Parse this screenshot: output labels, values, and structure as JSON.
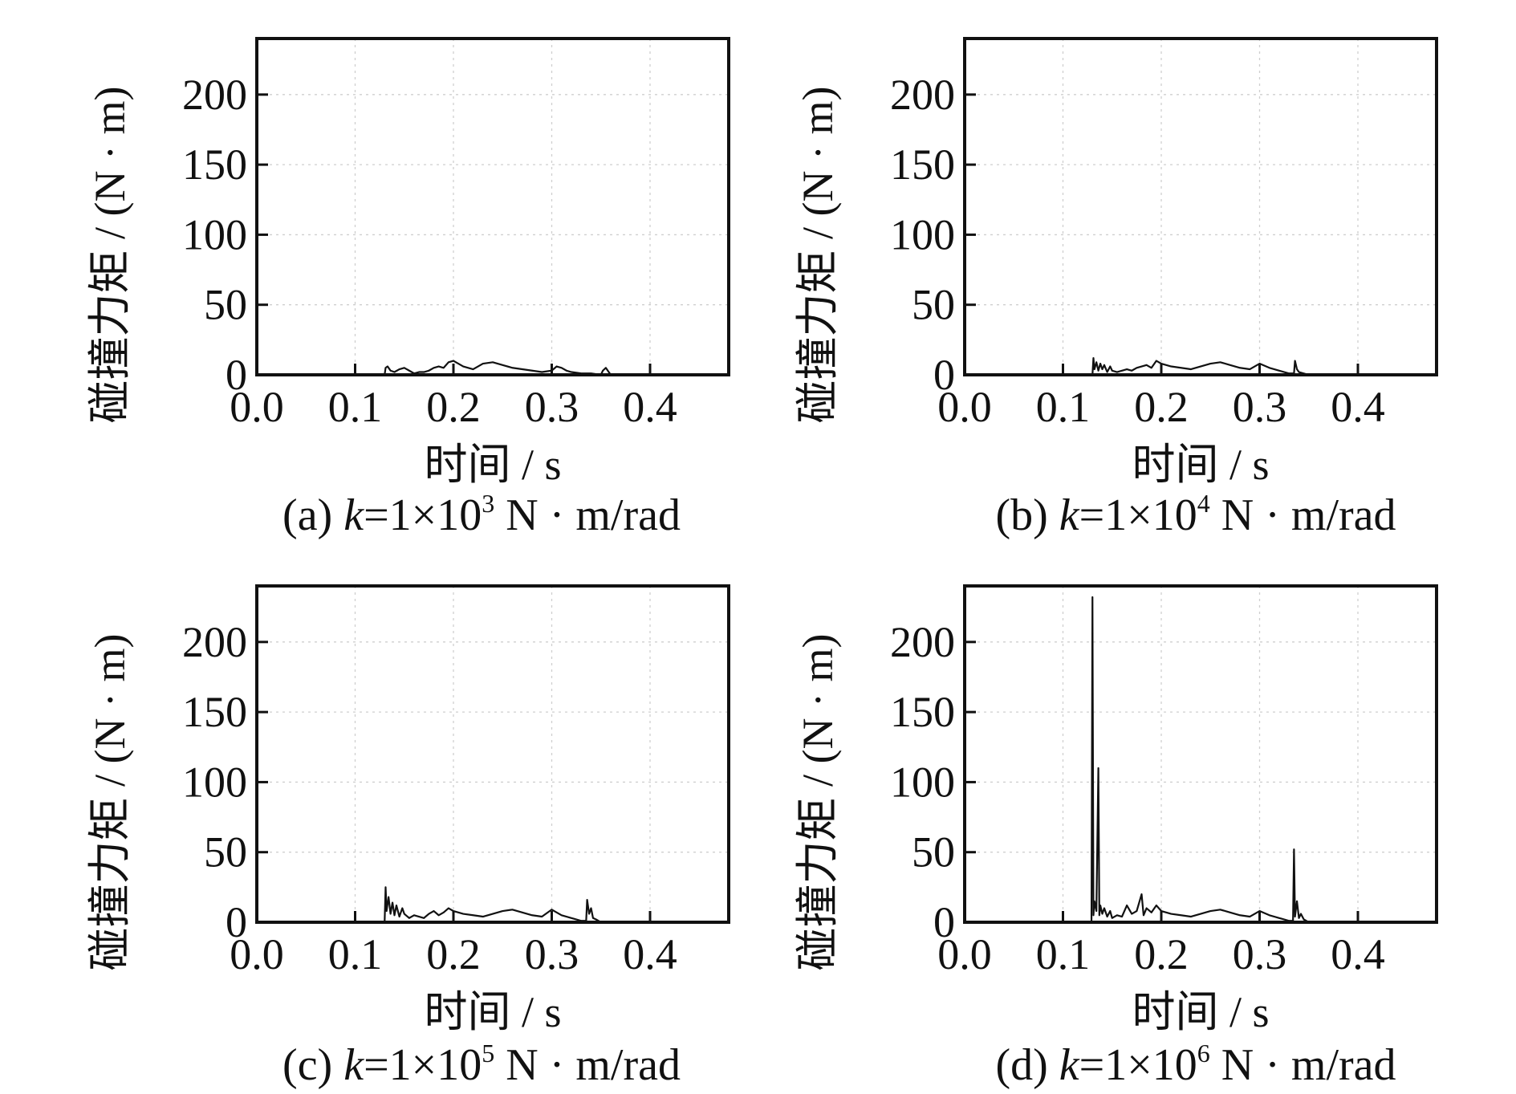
{
  "chart_data": [
    {
      "type": "line",
      "xlabel": "时间 / s",
      "ylabel": "碰撞力矩 / (N · m)",
      "xlim": [
        0,
        0.48
      ],
      "ylim": [
        0,
        240
      ],
      "xticks": [
        "0.0",
        "0.1",
        "0.2",
        "0.3",
        "0.4"
      ],
      "yticks": [
        "0",
        "50",
        "100",
        "150",
        "200"
      ],
      "grid": true,
      "caption": {
        "label": "(a)",
        "k": "k",
        "eq": "=1×10",
        "exp": "3",
        "unit": " N · m/rad"
      },
      "series": [
        {
          "x": [
            0,
            0.13,
            0.131,
            0.133,
            0.136,
            0.14,
            0.145,
            0.15,
            0.155,
            0.16,
            0.165,
            0.17,
            0.175,
            0.18,
            0.185,
            0.19,
            0.195,
            0.2,
            0.205,
            0.21,
            0.215,
            0.22,
            0.225,
            0.23,
            0.24,
            0.25,
            0.26,
            0.27,
            0.28,
            0.29,
            0.3,
            0.305,
            0.31,
            0.315,
            0.32,
            0.33,
            0.34,
            0.35,
            0.352,
            0.355,
            0.358,
            0.36,
            0.48
          ],
          "y": [
            0,
            0,
            5,
            6,
            3,
            2,
            4,
            5,
            3,
            1,
            2,
            2,
            3,
            5,
            6,
            5,
            9,
            10,
            8,
            6,
            5,
            4,
            6,
            8,
            9,
            7,
            5,
            4,
            3,
            2,
            3,
            6,
            5,
            3,
            2,
            1,
            1,
            0,
            3,
            5,
            2,
            0,
            0
          ]
        }
      ]
    },
    {
      "type": "line",
      "xlabel": "时间 / s",
      "ylabel": "碰撞力矩 / (N · m)",
      "xlim": [
        0,
        0.48
      ],
      "ylim": [
        0,
        240
      ],
      "xticks": [
        "0.0",
        "0.1",
        "0.2",
        "0.3",
        "0.4"
      ],
      "yticks": [
        "0",
        "50",
        "100",
        "150",
        "200"
      ],
      "grid": true,
      "caption": {
        "label": "(b)",
        "k": "k",
        "eq": "=1×10",
        "exp": "4",
        "unit": " N · m/rad"
      },
      "series": [
        {
          "x": [
            0,
            0.13,
            0.131,
            0.132,
            0.134,
            0.136,
            0.138,
            0.14,
            0.142,
            0.145,
            0.148,
            0.15,
            0.155,
            0.16,
            0.165,
            0.17,
            0.175,
            0.18,
            0.185,
            0.19,
            0.195,
            0.2,
            0.205,
            0.21,
            0.22,
            0.23,
            0.24,
            0.25,
            0.26,
            0.27,
            0.28,
            0.29,
            0.3,
            0.31,
            0.32,
            0.33,
            0.335,
            0.336,
            0.338,
            0.34,
            0.345,
            0.35,
            0.48
          ],
          "y": [
            0,
            0,
            12,
            4,
            9,
            3,
            8,
            4,
            7,
            2,
            6,
            3,
            2,
            3,
            4,
            3,
            5,
            6,
            7,
            5,
            10,
            8,
            7,
            6,
            5,
            4,
            6,
            8,
            9,
            7,
            5,
            4,
            8,
            5,
            3,
            1,
            1,
            10,
            4,
            2,
            1,
            0,
            0
          ]
        }
      ]
    },
    {
      "type": "line",
      "xlabel": "时间 / s",
      "ylabel": "碰撞力矩 / (N · m)",
      "xlim": [
        0,
        0.48
      ],
      "ylim": [
        0,
        240
      ],
      "xticks": [
        "0.0",
        "0.1",
        "0.2",
        "0.3",
        "0.4"
      ],
      "yticks": [
        "0",
        "50",
        "100",
        "150",
        "200"
      ],
      "grid": true,
      "caption": {
        "label": "(c)",
        "k": "k",
        "eq": "=1×10",
        "exp": "5",
        "unit": " N · m/rad"
      },
      "series": [
        {
          "x": [
            0,
            0.13,
            0.131,
            0.132,
            0.134,
            0.136,
            0.138,
            0.14,
            0.142,
            0.145,
            0.148,
            0.15,
            0.155,
            0.16,
            0.165,
            0.17,
            0.175,
            0.18,
            0.185,
            0.19,
            0.195,
            0.2,
            0.21,
            0.22,
            0.23,
            0.24,
            0.25,
            0.26,
            0.27,
            0.28,
            0.29,
            0.3,
            0.31,
            0.32,
            0.33,
            0.335,
            0.336,
            0.338,
            0.34,
            0.342,
            0.345,
            0.35,
            0.48
          ],
          "y": [
            0,
            0,
            25,
            8,
            18,
            6,
            14,
            5,
            12,
            4,
            10,
            6,
            3,
            5,
            4,
            3,
            6,
            8,
            5,
            7,
            10,
            8,
            6,
            5,
            4,
            6,
            8,
            9,
            7,
            5,
            4,
            9,
            5,
            3,
            1,
            1,
            16,
            6,
            10,
            3,
            2,
            0,
            0
          ]
        }
      ]
    },
    {
      "type": "line",
      "xlabel": "时间 / s",
      "ylabel": "碰撞力矩 / (N · m)",
      "xlim": [
        0,
        0.48
      ],
      "ylim": [
        0,
        240
      ],
      "xticks": [
        "0.0",
        "0.1",
        "0.2",
        "0.3",
        "0.4"
      ],
      "yticks": [
        "0",
        "50",
        "100",
        "150",
        "200"
      ],
      "grid": true,
      "caption": {
        "label": "(d)",
        "k": "k",
        "eq": "=1×10",
        "exp": "6",
        "unit": " N · m/rad"
      },
      "series": [
        {
          "x": [
            0,
            0.129,
            0.13,
            0.131,
            0.132,
            0.134,
            0.136,
            0.137,
            0.138,
            0.14,
            0.142,
            0.145,
            0.148,
            0.15,
            0.155,
            0.16,
            0.165,
            0.17,
            0.175,
            0.18,
            0.182,
            0.185,
            0.19,
            0.195,
            0.2,
            0.21,
            0.22,
            0.23,
            0.24,
            0.25,
            0.26,
            0.27,
            0.28,
            0.29,
            0.3,
            0.31,
            0.32,
            0.33,
            0.334,
            0.335,
            0.336,
            0.338,
            0.34,
            0.342,
            0.345,
            0.35,
            0.48
          ],
          "y": [
            0,
            0,
            232,
            5,
            15,
            8,
            110,
            5,
            12,
            6,
            10,
            4,
            8,
            3,
            5,
            4,
            12,
            6,
            8,
            20,
            5,
            10,
            7,
            12,
            8,
            6,
            5,
            4,
            6,
            8,
            9,
            7,
            5,
            4,
            8,
            5,
            3,
            1,
            1,
            52,
            4,
            15,
            3,
            6,
            2,
            0,
            0
          ]
        }
      ]
    }
  ]
}
